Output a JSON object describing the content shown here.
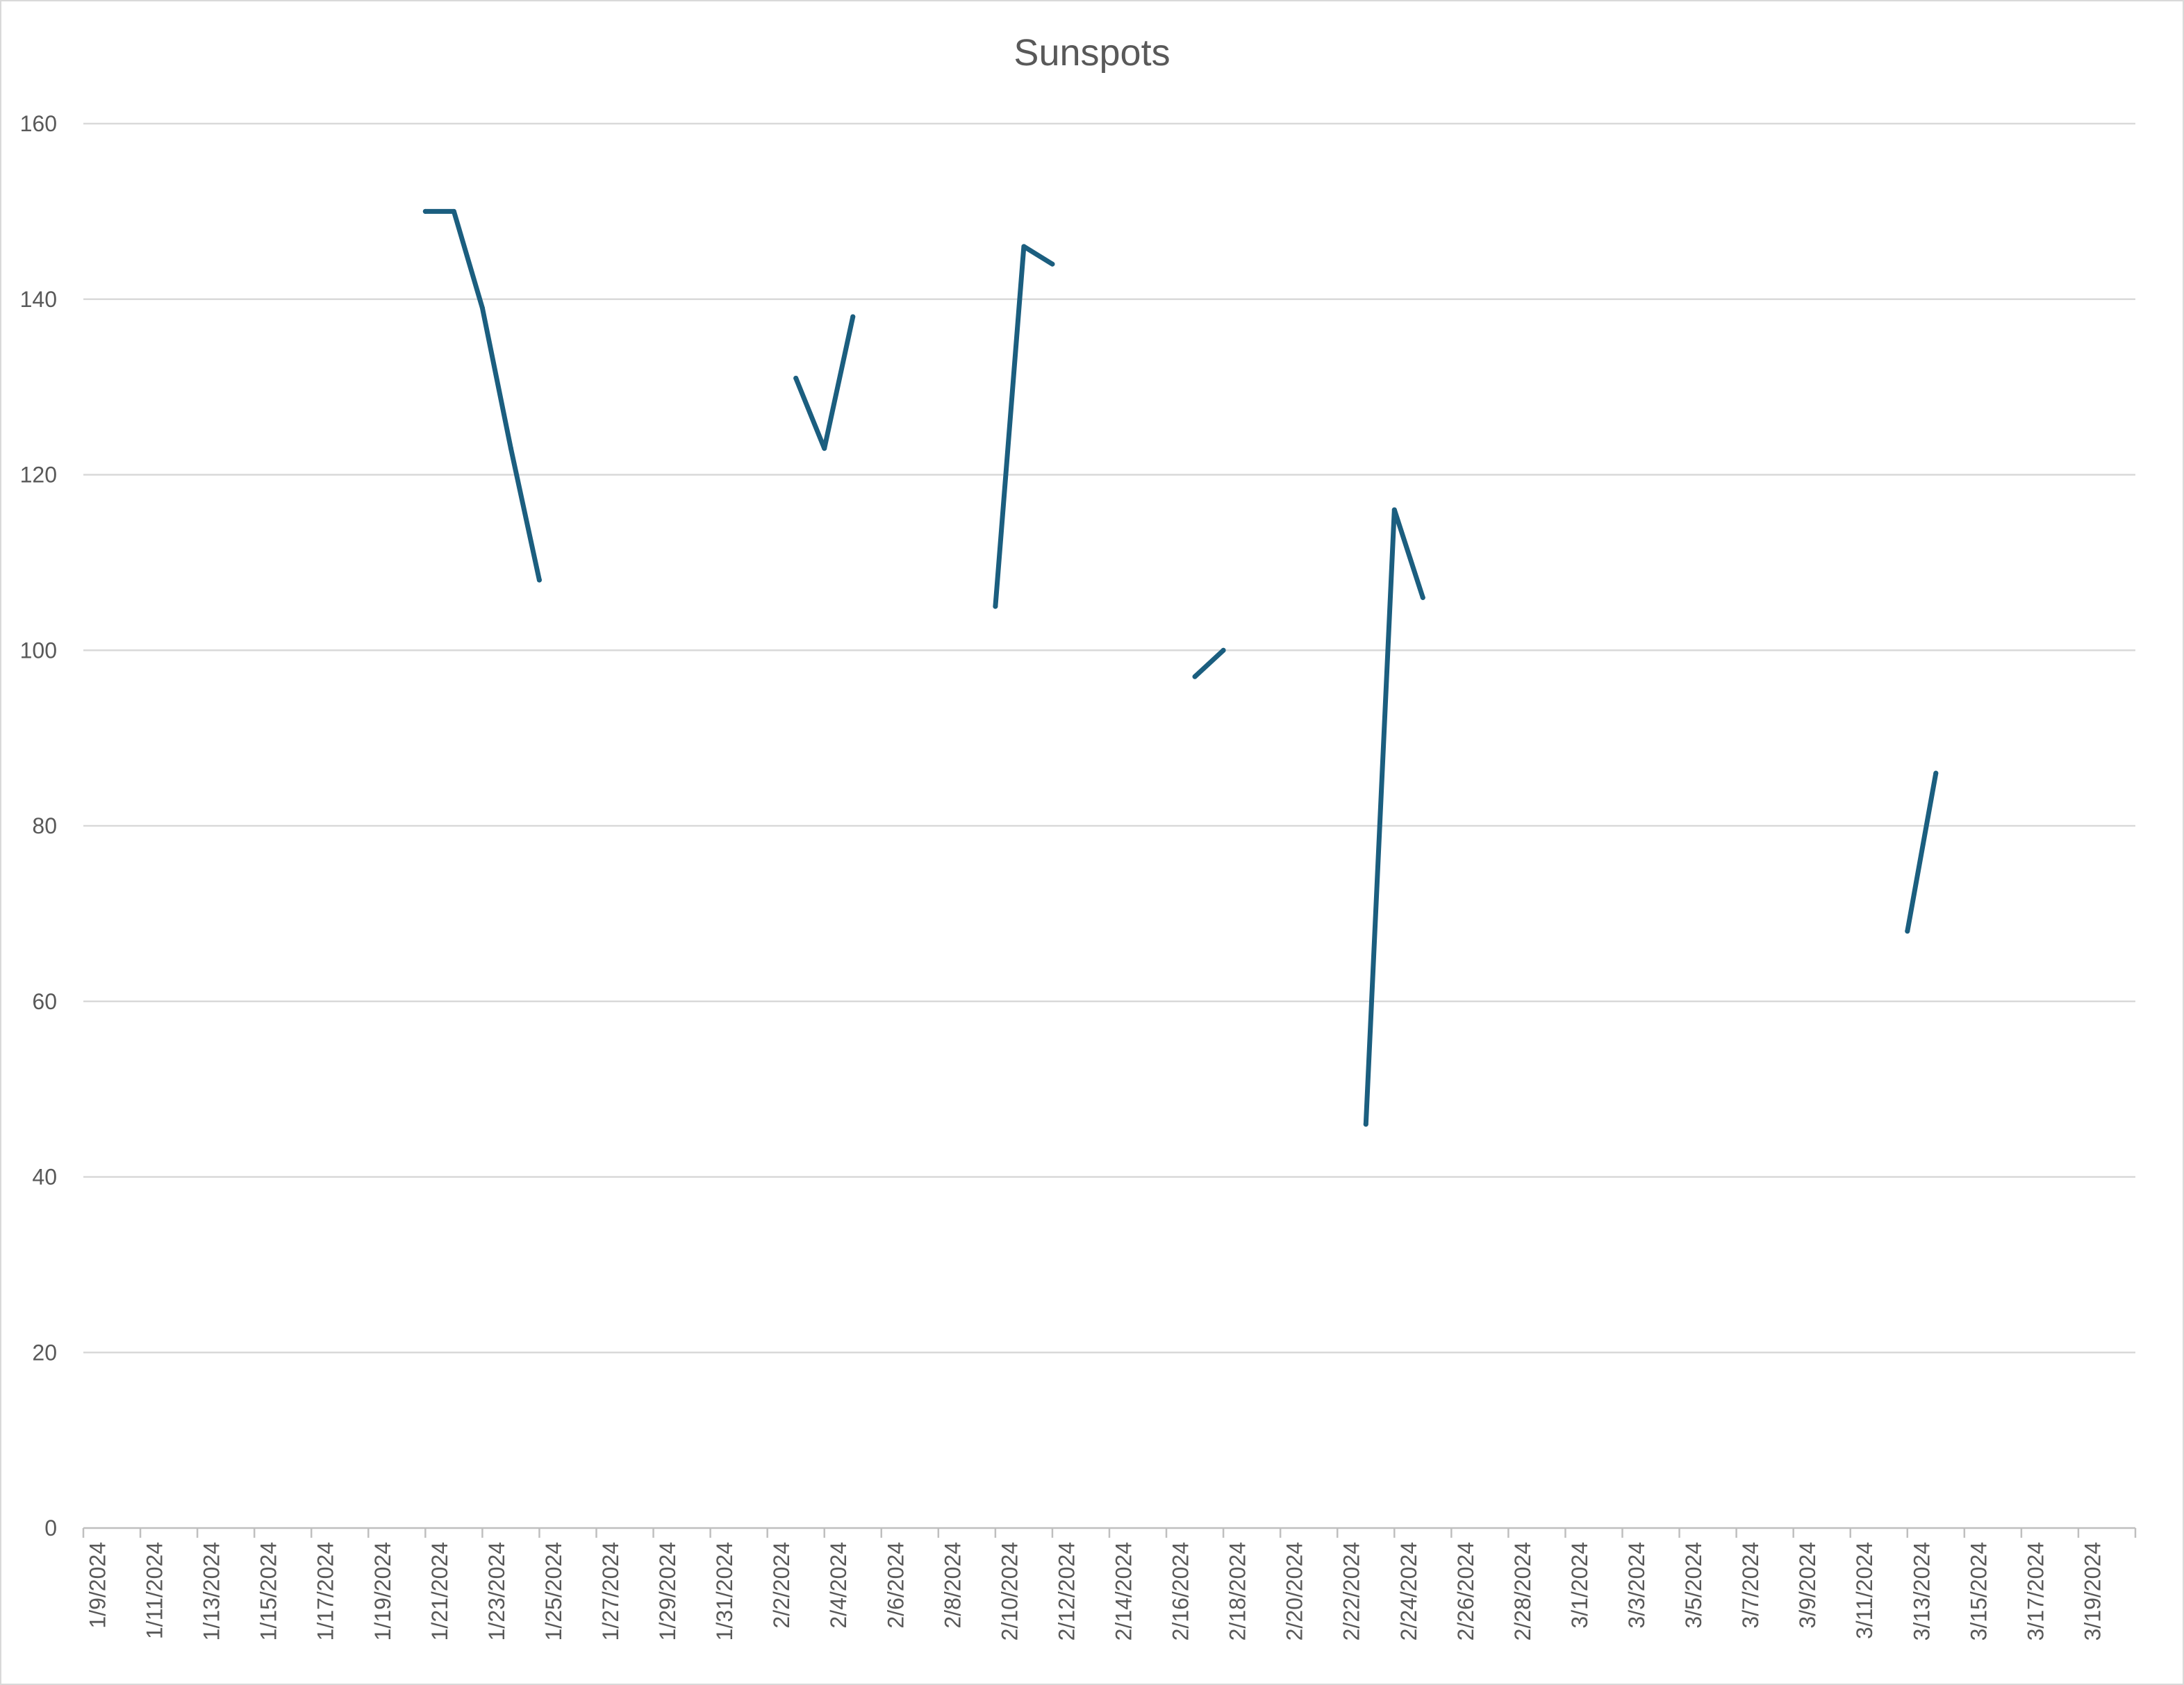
{
  "chart_data": {
    "type": "line",
    "title": "Sunspots",
    "xlabel": "",
    "ylabel": "",
    "ylim": [
      0,
      160
    ],
    "yticks": [
      0,
      20,
      40,
      60,
      80,
      100,
      120,
      140,
      160
    ],
    "x_range": [
      "2024-01-09",
      "2024-03-21"
    ],
    "x_tick_labels": [
      "1/9/2024",
      "1/11/2024",
      "1/13/2024",
      "1/15/2024",
      "1/17/2024",
      "1/19/2024",
      "1/21/2024",
      "1/23/2024",
      "1/25/2024",
      "1/27/2024",
      "1/29/2024",
      "1/31/2024",
      "2/2/2024",
      "2/4/2024",
      "2/6/2024",
      "2/8/2024",
      "2/10/2024",
      "2/12/2024",
      "2/14/2024",
      "2/16/2024",
      "2/18/2024",
      "2/20/2024",
      "2/22/2024",
      "2/24/2024",
      "2/26/2024",
      "2/28/2024",
      "3/1/2024",
      "3/3/2024",
      "3/5/2024",
      "3/7/2024",
      "3/9/2024",
      "3/11/2024",
      "3/13/2024",
      "3/15/2024",
      "3/17/2024",
      "3/19/2024"
    ],
    "grid": true,
    "legend": "none",
    "series": [
      {
        "color": "#1b5e7f",
        "segments": [
          [
            [
              "2024-01-21",
              150
            ],
            [
              "2024-01-22",
              150
            ],
            [
              "2024-01-23",
              139
            ],
            [
              "2024-01-24",
              123
            ],
            [
              "2024-01-25",
              108
            ]
          ],
          [
            [
              "2024-02-03",
              131
            ],
            [
              "2024-02-04",
              123
            ],
            [
              "2024-02-05",
              138
            ]
          ],
          [
            [
              "2024-02-10",
              105
            ],
            [
              "2024-02-11",
              146
            ],
            [
              "2024-02-12",
              144
            ]
          ],
          [
            [
              "2024-02-17",
              97
            ],
            [
              "2024-02-18",
              100
            ]
          ],
          [
            [
              "2024-02-23",
              46
            ],
            [
              "2024-02-24",
              116
            ],
            [
              "2024-02-25",
              106
            ]
          ],
          [
            [
              "2024-03-13",
              68
            ],
            [
              "2024-03-14",
              86
            ]
          ]
        ]
      }
    ]
  }
}
